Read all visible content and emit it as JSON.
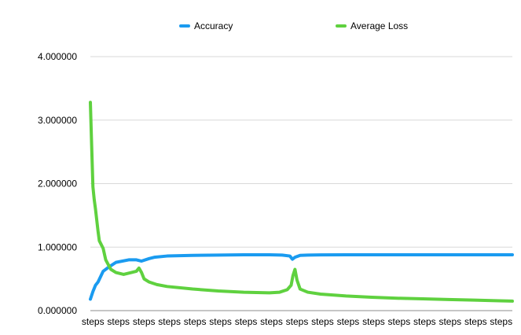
{
  "chart_data": {
    "type": "line",
    "title": "",
    "xlabel": "",
    "ylabel": "",
    "ylim": [
      0,
      4
    ],
    "y_ticks": [
      "0.000000",
      "1.000000",
      "2.000000",
      "3.000000",
      "4.000000"
    ],
    "x_tick_labels": [
      "steps",
      "steps",
      "steps",
      "steps",
      "steps",
      "steps",
      "steps",
      "steps",
      "steps",
      "steps",
      "steps",
      "steps",
      "steps",
      "steps",
      "steps",
      "steps",
      "steps"
    ],
    "grid": true,
    "legend_position": "top",
    "colors": {
      "Accuracy": "#1a9bf0",
      "Average Loss": "#5fd13f"
    },
    "series": [
      {
        "name": "Accuracy",
        "x": [
          0,
          0.1,
          0.2,
          0.3,
          0.5,
          0.7,
          1.0,
          1.5,
          1.8,
          2.0,
          2.3,
          2.5,
          3.0,
          4.0,
          5.0,
          6.0,
          7.0,
          7.5,
          7.8,
          7.9,
          8.0,
          8.2,
          8.5,
          9.0,
          10.0,
          11.0,
          12.0,
          13.0,
          14.0,
          15.0,
          16.0,
          16.5
        ],
        "values": [
          0.18,
          0.3,
          0.4,
          0.45,
          0.62,
          0.68,
          0.76,
          0.8,
          0.8,
          0.78,
          0.82,
          0.84,
          0.86,
          0.87,
          0.875,
          0.88,
          0.88,
          0.875,
          0.86,
          0.81,
          0.84,
          0.87,
          0.875,
          0.878,
          0.88,
          0.88,
          0.88,
          0.88,
          0.88,
          0.88,
          0.88,
          0.88
        ]
      },
      {
        "name": "Average Loss",
        "x": [
          0,
          0.05,
          0.1,
          0.15,
          0.2,
          0.3,
          0.35,
          0.5,
          0.6,
          0.8,
          1.0,
          1.3,
          1.6,
          1.8,
          1.9,
          2.0,
          2.1,
          2.3,
          2.6,
          3.0,
          4.0,
          5.0,
          6.0,
          7.0,
          7.4,
          7.7,
          7.85,
          7.92,
          8.0,
          8.08,
          8.2,
          8.5,
          9.0,
          10.0,
          11.0,
          12.0,
          13.0,
          14.0,
          15.0,
          16.0,
          16.5
        ],
        "values": [
          3.28,
          2.6,
          1.95,
          1.75,
          1.6,
          1.25,
          1.1,
          0.98,
          0.8,
          0.65,
          0.6,
          0.57,
          0.6,
          0.62,
          0.67,
          0.6,
          0.5,
          0.45,
          0.41,
          0.38,
          0.34,
          0.31,
          0.29,
          0.28,
          0.29,
          0.33,
          0.4,
          0.55,
          0.65,
          0.48,
          0.34,
          0.29,
          0.26,
          0.23,
          0.21,
          0.195,
          0.185,
          0.175,
          0.165,
          0.155,
          0.15
        ]
      }
    ]
  }
}
